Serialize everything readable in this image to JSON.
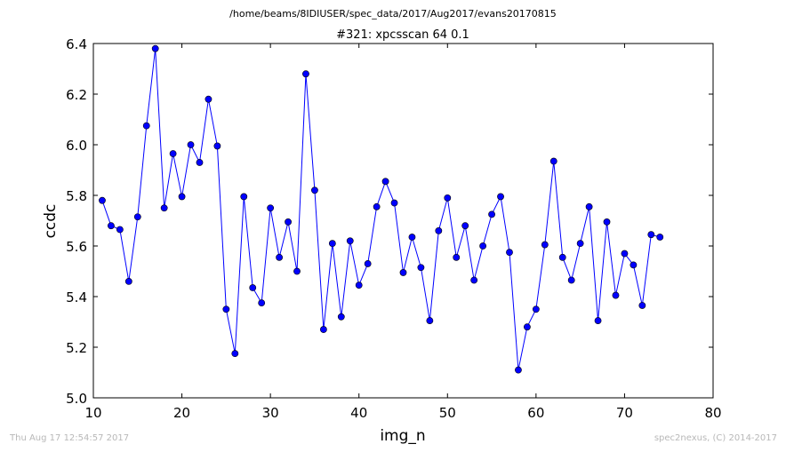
{
  "figure": {
    "supertitle": "/home/beams/8IDIUSER/spec_data/2017/Aug2017/evans20170815",
    "footer_left": "Thu Aug 17 12:54:57 2017",
    "footer_right": "spec2nexus, (C) 2014-2017"
  },
  "chart_data": {
    "type": "line",
    "title": "#321: xpcsscan 64 0.1",
    "xlabel": "img_n",
    "ylabel": "ccdc",
    "xlim": [
      10,
      80
    ],
    "ylim": [
      5.0,
      6.4
    ],
    "xticks": [
      "10",
      "20",
      "30",
      "40",
      "50",
      "60",
      "70",
      "80"
    ],
    "yticks": [
      "5.0",
      "5.2",
      "5.4",
      "5.6",
      "5.8",
      "6.0",
      "6.2",
      "6.4"
    ],
    "grid": false,
    "color": "#0000ff",
    "marker": "circle",
    "x": [
      11,
      12,
      13,
      14,
      15,
      16,
      17,
      18,
      19,
      20,
      21,
      22,
      23,
      24,
      25,
      26,
      27,
      28,
      29,
      30,
      31,
      32,
      33,
      34,
      35,
      36,
      37,
      38,
      39,
      40,
      41,
      42,
      43,
      44,
      45,
      46,
      47,
      48,
      49,
      50,
      51,
      52,
      53,
      54,
      55,
      56,
      57,
      58,
      59,
      60,
      61,
      62,
      63,
      64,
      65,
      66,
      67,
      68,
      69,
      70,
      71,
      72,
      73,
      74
    ],
    "y": [
      5.78,
      5.68,
      5.665,
      5.46,
      5.715,
      6.075,
      6.38,
      5.75,
      5.965,
      5.795,
      6.0,
      5.93,
      6.18,
      5.995,
      5.35,
      5.175,
      5.795,
      5.435,
      5.375,
      5.75,
      5.555,
      5.695,
      5.5,
      6.28,
      5.82,
      5.27,
      5.61,
      5.32,
      5.62,
      5.445,
      5.53,
      5.755,
      5.855,
      5.77,
      5.495,
      5.635,
      5.515,
      5.305,
      5.66,
      5.79,
      5.555,
      5.68,
      5.465,
      5.6,
      5.725,
      5.795,
      5.575,
      5.11,
      5.28,
      5.35,
      5.605,
      5.935,
      5.555,
      5.465,
      5.61,
      5.755,
      5.305,
      5.695,
      5.405,
      5.57,
      5.525,
      5.365,
      5.645,
      5.635
    ]
  }
}
